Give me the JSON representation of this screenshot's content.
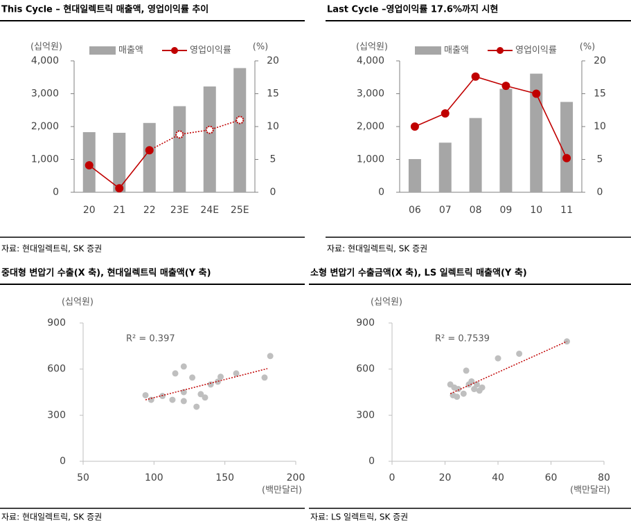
{
  "chart_data": [
    {
      "type": "combo",
      "title": "This Cycle – 현대일렉트릭 매출액, 영업이익률 추이",
      "source": "자료: 현대일렉트릭, SK 증권",
      "ylabel": "(십억원)",
      "y2label": "(%)",
      "categories": [
        "20",
        "21",
        "22",
        "23E",
        "24E",
        "25E"
      ],
      "series": [
        {
          "name": "매출액",
          "color": "#a6a6a6",
          "values": [
            1830,
            1810,
            2110,
            2620,
            3220,
            3780
          ]
        },
        {
          "name": "영업이익률",
          "color": "#c00000",
          "axis": "y2",
          "values": [
            4.1,
            0.6,
            6.4,
            8.8,
            9.5,
            11.0
          ]
        }
      ],
      "projected_from": 3,
      "ylim": [
        0,
        4000
      ],
      "yticks": [
        0,
        {
          "value": 1000,
          "label": "1,000"
        },
        {
          "value": 2000,
          "label": "2,000"
        },
        {
          "value": 3000,
          "label": "3,000"
        },
        {
          "value": 4000,
          "label": "4,000"
        }
      ],
      "y2lim": [
        0,
        20
      ],
      "y2ticks": [
        0,
        5,
        10,
        15,
        20
      ]
    },
    {
      "type": "combo",
      "title": "Last Cycle –영업이익률 17.6%까지 시현",
      "source": "자료: 현대일렉트릭, SK 증권",
      "ylabel": "(십억원)",
      "y2label": "(%)",
      "categories": [
        "06",
        "07",
        "08",
        "09",
        "10",
        "11"
      ],
      "series": [
        {
          "name": "매출액",
          "color": "#a6a6a6",
          "values": [
            1010,
            1510,
            2260,
            3150,
            3610,
            2750
          ]
        },
        {
          "name": "영업이익률",
          "color": "#c00000",
          "axis": "y2",
          "values": [
            10.0,
            12.0,
            17.6,
            16.2,
            15.0,
            5.2
          ]
        }
      ],
      "ylim": [
        0,
        4000
      ],
      "yticks": [
        0,
        {
          "value": 1000,
          "label": "1,000"
        },
        {
          "value": 2000,
          "label": "2,000"
        },
        {
          "value": 3000,
          "label": "3,000"
        },
        {
          "value": 4000,
          "label": "4,000"
        }
      ],
      "y2lim": [
        0,
        20
      ],
      "y2ticks": [
        0,
        5,
        10,
        15,
        20
      ]
    },
    {
      "type": "scatter",
      "title": "중대형 변압기 수출(X 축), 현대일렉트릭 매출액(Y 축)",
      "source": "자료: 현대일렉트릭, SK 증권",
      "ylabel": "(십억원)",
      "xlabel": "(백만달러)",
      "annotation": "R² = 0.397",
      "color": "#bfbfbf",
      "x": [
        94,
        98,
        106,
        113,
        115,
        121,
        121,
        121,
        127,
        130,
        133,
        136,
        140,
        145,
        147,
        158,
        178,
        182
      ],
      "y": [
        430,
        400,
        425,
        400,
        572,
        450,
        617,
        392,
        545,
        355,
        437,
        415,
        500,
        518,
        550,
        572,
        545,
        685
      ],
      "trendline": {
        "x": [
          94,
          180
        ],
        "y": [
          400,
          603
        ],
        "color": "#c00000"
      },
      "xlim": [
        50,
        200
      ],
      "xticks": [
        50,
        100,
        150,
        200
      ],
      "ylim": [
        0,
        900
      ],
      "yticks": [
        0,
        300,
        600,
        900
      ]
    },
    {
      "type": "scatter",
      "title": "소형 변압기 수출금액(X 축), LS 일렉트릭 매출액(Y 축)",
      "source": "자료: LS 일렉트릭, SK 증권",
      "ylabel": "(십억원)",
      "xlabel": "(백만달러)",
      "annotation": "R² = 0.7539",
      "color": "#bfbfbf",
      "x": [
        22,
        23,
        23.5,
        24.5,
        25,
        27,
        28,
        29,
        30,
        31,
        32,
        33,
        34,
        40,
        48,
        66
      ],
      "y": [
        500,
        430,
        480,
        420,
        470,
        440,
        590,
        500,
        520,
        470,
        500,
        460,
        480,
        670,
        700,
        780
      ],
      "trendline": {
        "x": [
          22,
          66
        ],
        "y": [
          440,
          780
        ],
        "color": "#c00000"
      },
      "xlim": [
        0,
        80
      ],
      "xticks": [
        0,
        20,
        40,
        60,
        80
      ],
      "ylim": [
        0,
        900
      ],
      "yticks": [
        0,
        300,
        600,
        900
      ]
    }
  ]
}
